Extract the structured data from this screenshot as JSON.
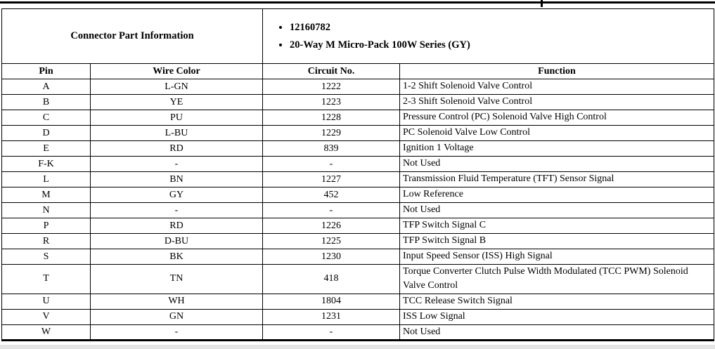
{
  "page": {
    "header": {
      "title": "Connector Part Information",
      "bullets": [
        "12160782",
        "20-Way M Micro-Pack 100W Series (GY)"
      ]
    },
    "table": {
      "columns": [
        "Pin",
        "Wire Color",
        "Circuit No.",
        "Function"
      ],
      "rows": [
        [
          "A",
          "L-GN",
          "1222",
          "1-2 Shift Solenoid Valve Control"
        ],
        [
          "B",
          "YE",
          "1223",
          "2-3 Shift Solenoid Valve Control"
        ],
        [
          "C",
          "PU",
          "1228",
          "Pressure Control (PC) Solenoid Valve High Control"
        ],
        [
          "D",
          "L-BU",
          "1229",
          "PC Solenoid Valve Low Control"
        ],
        [
          "E",
          "RD",
          "839",
          "Ignition 1 Voltage"
        ],
        [
          "F-K",
          "-",
          "-",
          "Not Used"
        ],
        [
          "L",
          "BN",
          "1227",
          "Transmission Fluid Temperature (TFT) Sensor Signal"
        ],
        [
          "M",
          "GY",
          "452",
          "Low Reference"
        ],
        [
          "N",
          "-",
          "-",
          "Not Used"
        ],
        [
          "P",
          "RD",
          "1226",
          "TFP Switch Signal C"
        ],
        [
          "R",
          "D-BU",
          "1225",
          "TFP Switch Signal B"
        ],
        [
          "S",
          "BK",
          "1230",
          "Input Speed Sensor (ISS) High Signal"
        ],
        [
          "T",
          "TN",
          "418",
          "Torque Converter Clutch Pulse Width Modulated (TCC PWM) Solenoid Valve Control"
        ],
        [
          "U",
          "WH",
          "1804",
          "TCC Release Switch Signal"
        ],
        [
          "V",
          "GN",
          "1231",
          "ISS Low Signal"
        ],
        [
          "W",
          "-",
          "-",
          "Not Used"
        ]
      ]
    }
  }
}
